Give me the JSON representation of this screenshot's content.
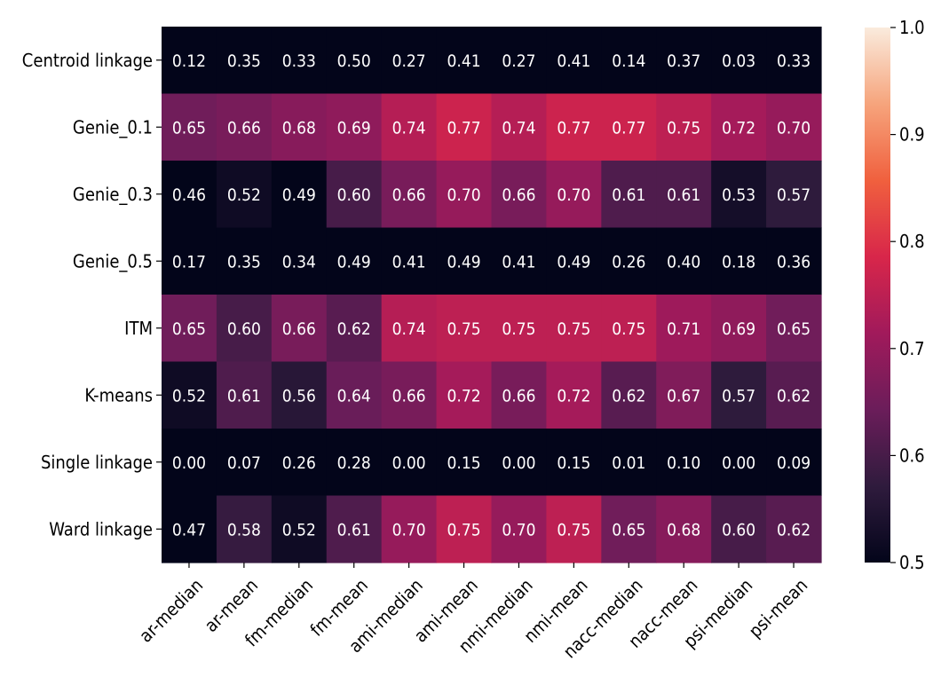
{
  "chart_data": {
    "type": "heatmap",
    "title": "",
    "xlabel": "",
    "ylabel": "",
    "rows": [
      "Centroid linkage",
      "Genie_0.1",
      "Genie_0.3",
      "Genie_0.5",
      "ITM",
      "K-means",
      "Single linkage",
      "Ward linkage"
    ],
    "columns": [
      "ar-median",
      "ar-mean",
      "fm-median",
      "fm-mean",
      "ami-median",
      "ami-mean",
      "nmi-median",
      "nmi-mean",
      "nacc-median",
      "nacc-mean",
      "psi-median",
      "psi-mean"
    ],
    "values": [
      [
        0.12,
        0.35,
        0.33,
        0.5,
        0.27,
        0.41,
        0.27,
        0.41,
        0.14,
        0.37,
        0.03,
        0.33
      ],
      [
        0.65,
        0.66,
        0.68,
        0.69,
        0.74,
        0.77,
        0.74,
        0.77,
        0.77,
        0.75,
        0.72,
        0.7
      ],
      [
        0.46,
        0.52,
        0.49,
        0.6,
        0.66,
        0.7,
        0.66,
        0.7,
        0.61,
        0.61,
        0.53,
        0.57
      ],
      [
        0.17,
        0.35,
        0.34,
        0.49,
        0.41,
        0.49,
        0.41,
        0.49,
        0.26,
        0.4,
        0.18,
        0.36
      ],
      [
        0.65,
        0.6,
        0.66,
        0.62,
        0.74,
        0.75,
        0.75,
        0.75,
        0.75,
        0.71,
        0.69,
        0.65
      ],
      [
        0.52,
        0.61,
        0.56,
        0.64,
        0.66,
        0.72,
        0.66,
        0.72,
        0.62,
        0.67,
        0.57,
        0.62
      ],
      [
        0.0,
        0.07,
        0.26,
        0.28,
        0.0,
        0.15,
        0.0,
        0.15,
        0.01,
        0.1,
        0.0,
        0.09
      ],
      [
        0.47,
        0.58,
        0.52,
        0.61,
        0.7,
        0.75,
        0.7,
        0.75,
        0.65,
        0.68,
        0.6,
        0.62
      ]
    ],
    "annotation_format": "0.00",
    "color_scale": {
      "min": 0.5,
      "max": 1.0,
      "ticks": [
        "0.5",
        "0.6",
        "0.7",
        "0.8",
        "0.9",
        "1.0"
      ],
      "colormap": "rocket",
      "stops": [
        "#03051a",
        "#2f1b3d",
        "#6b1d5a",
        "#a11a5b",
        "#d8264a",
        "#f0603e",
        "#f6a47c",
        "#faebdd"
      ]
    },
    "legend": "colorbar-right",
    "grid": false
  }
}
